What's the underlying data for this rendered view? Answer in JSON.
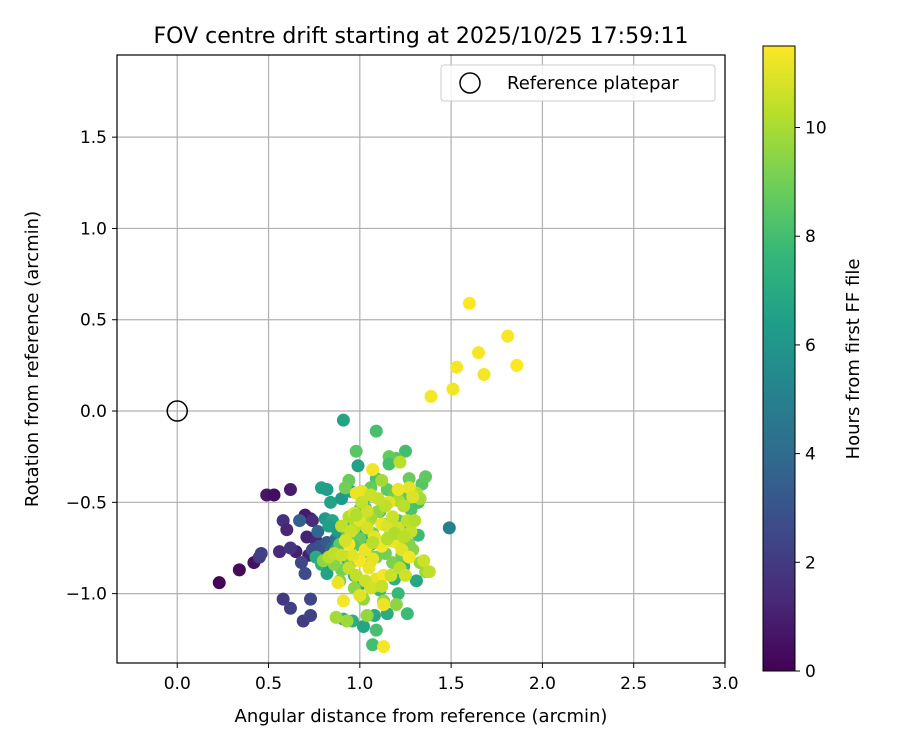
{
  "chart_data": {
    "type": "scatter",
    "title": "FOV centre drift starting at 2025/10/25 17:59:11",
    "xlabel": "Angular distance from reference (arcmin)",
    "ylabel": "Rotation from reference (arcmin)",
    "xlim": [
      -0.33,
      3.0
    ],
    "ylim": [
      -1.38,
      1.95
    ],
    "x_ticks": [
      0.0,
      0.5,
      1.0,
      1.5,
      2.0,
      2.5,
      3.0
    ],
    "x_tick_labels": [
      "0.0",
      "0.5",
      "1.0",
      "1.5",
      "2.0",
      "2.5",
      "3.0"
    ],
    "y_ticks": [
      -1.0,
      -0.5,
      0.0,
      0.5,
      1.0,
      1.5
    ],
    "y_tick_labels": [
      "−1.0",
      "−0.5",
      "0.0",
      "0.5",
      "1.0",
      "1.5"
    ],
    "grid": true,
    "legend": {
      "position": "top-right",
      "label": "Reference platepar",
      "marker": "open-circle"
    },
    "reference_point": {
      "x": 0.0,
      "y": 0.0
    },
    "colorbar": {
      "label": "Hours from first FF file",
      "range": [
        0,
        11.5
      ],
      "ticks": [
        0,
        2,
        4,
        6,
        8,
        10
      ],
      "tick_labels": [
        "0",
        "2",
        "4",
        "6",
        "8",
        "10"
      ],
      "colormap": "viridis",
      "viridis_stops": [
        "#440154",
        "#482878",
        "#3e4989",
        "#31688e",
        "#26828e",
        "#1f9e89",
        "#35b779",
        "#6ece58",
        "#b5de2b",
        "#fde725"
      ]
    },
    "series": [
      {
        "name": "FOV centre drift",
        "points": [
          [
            0.23,
            -0.94,
            0.1
          ],
          [
            0.34,
            -0.87,
            0.3
          ],
          [
            0.42,
            -0.83,
            0.5
          ],
          [
            0.49,
            -0.46,
            0.7
          ],
          [
            0.53,
            -0.46,
            0.4
          ],
          [
            0.62,
            -0.43,
            0.9
          ],
          [
            0.56,
            -0.77,
            1.4
          ],
          [
            0.58,
            -0.6,
            1.6
          ],
          [
            0.6,
            -0.65,
            1.2
          ],
          [
            0.65,
            -0.77,
            1.0
          ],
          [
            0.7,
            -0.57,
            0.8
          ],
          [
            0.71,
            -0.69,
            1.1
          ],
          [
            0.73,
            -0.59,
            0.9
          ],
          [
            0.76,
            -0.71,
            1.3
          ],
          [
            0.72,
            -0.79,
            1.0
          ],
          [
            0.74,
            -0.6,
            1.5
          ],
          [
            0.62,
            -0.75,
            1.8
          ],
          [
            0.58,
            -1.03,
            2.0
          ],
          [
            0.62,
            -1.08,
            2.2
          ],
          [
            0.69,
            -1.15,
            2.1
          ],
          [
            0.73,
            -1.12,
            2.3
          ],
          [
            0.73,
            -1.03,
            2.4
          ],
          [
            0.68,
            -0.83,
            2.5
          ],
          [
            0.7,
            -0.89,
            2.6
          ],
          [
            0.74,
            -0.76,
            2.7
          ],
          [
            0.78,
            -0.74,
            2.8
          ],
          [
            0.8,
            -0.79,
            3.0
          ],
          [
            0.82,
            -0.72,
            3.2
          ],
          [
            0.8,
            -0.84,
            2.9
          ],
          [
            0.45,
            -0.8,
            2.0
          ],
          [
            0.46,
            -0.78,
            2.2
          ],
          [
            0.67,
            -0.6,
            3.5
          ],
          [
            0.77,
            -0.66,
            3.8
          ],
          [
            1.49,
            -0.64,
            5.0
          ],
          [
            0.85,
            -0.75,
            4.0
          ],
          [
            0.87,
            -0.7,
            4.3
          ],
          [
            0.91,
            -0.05,
            6.7
          ],
          [
            0.99,
            -0.3,
            6.6
          ],
          [
            0.79,
            -0.42,
            6.6
          ],
          [
            0.82,
            -0.43,
            6.4
          ],
          [
            0.84,
            -0.5,
            6.6
          ],
          [
            0.9,
            -0.48,
            6.2
          ],
          [
            0.95,
            -0.44,
            6.6
          ],
          [
            0.81,
            -0.59,
            6.1
          ],
          [
            0.85,
            -0.6,
            6.8
          ],
          [
            0.83,
            -0.63,
            6.5
          ],
          [
            0.88,
            -0.66,
            6.3
          ],
          [
            0.93,
            -0.63,
            6.7
          ],
          [
            0.87,
            -0.76,
            6.4
          ],
          [
            0.92,
            -0.8,
            6.9
          ],
          [
            0.96,
            -0.57,
            7.0
          ],
          [
            1.0,
            -0.65,
            6.6
          ],
          [
            1.03,
            -0.71,
            6.8
          ],
          [
            1.06,
            -0.73,
            7.1
          ],
          [
            0.79,
            -0.84,
            7.4
          ],
          [
            0.76,
            -0.8,
            7.0
          ],
          [
            0.82,
            -0.89,
            6.6
          ],
          [
            0.93,
            -0.86,
            7.2
          ],
          [
            0.97,
            -0.9,
            7.3
          ],
          [
            1.0,
            -0.95,
            7.2
          ],
          [
            1.05,
            -0.84,
            7.4
          ],
          [
            0.91,
            -1.14,
            7.4
          ],
          [
            0.96,
            -1.15,
            7.2
          ],
          [
            1.02,
            -1.18,
            6.8
          ],
          [
            1.08,
            -1.12,
            7.0
          ],
          [
            1.15,
            -1.11,
            7.1
          ],
          [
            1.19,
            -0.92,
            7.3
          ],
          [
            1.24,
            -0.85,
            7.5
          ],
          [
            1.31,
            -0.93,
            6.8
          ],
          [
            1.26,
            -1.11,
            7.8
          ],
          [
            1.21,
            -1.0,
            7.7
          ],
          [
            1.11,
            -0.98,
            7.5
          ],
          [
            1.07,
            -1.28,
            8.0
          ],
          [
            1.09,
            -1.2,
            8.1
          ],
          [
            1.32,
            -0.68,
            7.8
          ],
          [
            1.24,
            -0.61,
            7.9
          ],
          [
            1.28,
            -0.54,
            8.2
          ],
          [
            1.26,
            -0.47,
            8.6
          ],
          [
            1.32,
            -0.5,
            8.1
          ],
          [
            1.34,
            -0.4,
            8.4
          ],
          [
            1.36,
            -0.36,
            8.6
          ],
          [
            1.27,
            -0.37,
            8.8
          ],
          [
            1.25,
            -0.22,
            8.0
          ],
          [
            1.2,
            -0.26,
            8.4
          ],
          [
            1.16,
            -0.25,
            8.7
          ],
          [
            1.16,
            -0.29,
            8.1
          ],
          [
            1.09,
            -0.37,
            8.3
          ],
          [
            1.06,
            -0.42,
            8.7
          ],
          [
            1.03,
            -0.47,
            7.9
          ],
          [
            1.09,
            -0.11,
            8.1
          ],
          [
            0.98,
            -0.22,
            8.5
          ],
          [
            0.94,
            -0.38,
            8.8
          ],
          [
            0.92,
            -0.42,
            9.0
          ],
          [
            1.0,
            -0.54,
            8.0
          ],
          [
            1.03,
            -0.53,
            8.4
          ],
          [
            1.11,
            -0.55,
            8.2
          ],
          [
            1.15,
            -0.43,
            8.6
          ],
          [
            1.19,
            -0.46,
            8.9
          ],
          [
            1.21,
            -0.6,
            8.3
          ],
          [
            1.17,
            -0.67,
            8.5
          ],
          [
            1.13,
            -0.62,
            8.7
          ],
          [
            1.07,
            -0.67,
            8.9
          ],
          [
            1.0,
            -0.7,
            8.8
          ],
          [
            0.97,
            -0.74,
            8.5
          ],
          [
            0.93,
            -0.69,
            8.7
          ],
          [
            0.89,
            -0.73,
            8.6
          ],
          [
            0.9,
            -0.87,
            9.0
          ],
          [
            0.95,
            -0.83,
            8.8
          ],
          [
            1.04,
            -0.77,
            9.0
          ],
          [
            1.09,
            -0.8,
            9.1
          ],
          [
            1.14,
            -0.78,
            9.0
          ],
          [
            1.18,
            -0.83,
            9.2
          ],
          [
            1.23,
            -0.79,
            8.9
          ],
          [
            1.27,
            -0.73,
            9.3
          ],
          [
            1.29,
            -0.76,
            9.4
          ],
          [
            1.33,
            -0.83,
            9.6
          ],
          [
            1.36,
            -0.88,
            9.8
          ],
          [
            0.8,
            -0.82,
            9.5
          ],
          [
            0.86,
            -0.84,
            9.4
          ],
          [
            0.89,
            -0.93,
            9.3
          ],
          [
            0.97,
            -0.97,
            9.5
          ],
          [
            1.02,
            -1.03,
            9.6
          ],
          [
            1.08,
            -0.96,
            9.8
          ],
          [
            1.13,
            -1.04,
            9.7
          ],
          [
            1.2,
            -1.06,
            9.5
          ],
          [
            0.87,
            -1.13,
            9.9
          ],
          [
            0.93,
            -1.15,
            9.8
          ],
          [
            1.04,
            -1.12,
            9.6
          ],
          [
            1.12,
            -0.38,
            9.9
          ],
          [
            1.1,
            -0.55,
            9.6
          ],
          [
            1.06,
            -0.59,
            9.9
          ],
          [
            1.02,
            -0.6,
            10.1
          ],
          [
            0.97,
            -0.64,
            10.3
          ],
          [
            0.94,
            -0.58,
            10.2
          ],
          [
            0.9,
            -0.63,
            10.4
          ],
          [
            1.21,
            -0.49,
            10.0
          ],
          [
            1.24,
            -0.52,
            10.3
          ],
          [
            1.25,
            -0.68,
            10.1
          ],
          [
            1.31,
            -0.45,
            10.2
          ],
          [
            1.33,
            -0.48,
            9.9
          ],
          [
            1.22,
            -0.28,
            10.3
          ],
          [
            0.97,
            -0.56,
            10.9
          ],
          [
            1.0,
            -0.6,
            11.0
          ],
          [
            1.04,
            -0.64,
            10.8
          ],
          [
            1.08,
            -0.69,
            11.1
          ],
          [
            1.12,
            -0.62,
            11.2
          ],
          [
            1.15,
            -0.63,
            10.9
          ],
          [
            1.17,
            -0.71,
            11.0
          ],
          [
            1.12,
            -0.74,
            11.3
          ],
          [
            1.07,
            -0.81,
            11.1
          ],
          [
            1.03,
            -0.76,
            11.2
          ],
          [
            1.0,
            -0.82,
            11.4
          ],
          [
            0.96,
            -0.79,
            11.0
          ],
          [
            0.94,
            -0.73,
            11.3
          ],
          [
            1.2,
            -0.72,
            11.2
          ],
          [
            1.23,
            -0.76,
            11.0
          ],
          [
            1.27,
            -0.8,
            11.3
          ],
          [
            1.09,
            -0.92,
            11.1
          ],
          [
            1.05,
            -0.86,
            11.2
          ],
          [
            1.13,
            -0.9,
            11.4
          ],
          [
            1.13,
            -1.06,
            11.2
          ],
          [
            1.0,
            -1.01,
            11.0
          ],
          [
            0.91,
            -1.04,
            11.3
          ],
          [
            0.88,
            -0.94,
            11.2
          ],
          [
            1.13,
            -1.29,
            11.4
          ],
          [
            1.27,
            -0.42,
            11.1
          ],
          [
            1.29,
            -0.47,
            10.9
          ],
          [
            1.21,
            -0.43,
            11.2
          ],
          [
            1.16,
            -0.5,
            11.0
          ],
          [
            1.07,
            -0.32,
            11.3
          ],
          [
            1.01,
            -0.44,
            11.1
          ],
          [
            0.98,
            -0.45,
            11.2
          ],
          [
            1.39,
            0.08,
            11.4
          ],
          [
            1.51,
            0.12,
            11.3
          ],
          [
            1.53,
            0.24,
            11.4
          ],
          [
            1.6,
            0.59,
            11.5
          ],
          [
            1.65,
            0.32,
            11.4
          ],
          [
            1.68,
            0.2,
            11.3
          ],
          [
            1.81,
            0.41,
            11.4
          ],
          [
            1.86,
            0.25,
            11.5
          ],
          [
            1.38,
            -0.88,
            10.4
          ],
          [
            1.35,
            -0.82,
            10.6
          ],
          [
            1.28,
            -0.66,
            10.5
          ],
          [
            1.21,
            -0.64,
            10.7
          ],
          [
            1.18,
            -0.58,
            10.6
          ],
          [
            1.14,
            -0.52,
            10.4
          ],
          [
            1.1,
            -0.48,
            10.5
          ],
          [
            1.06,
            -0.46,
            10.6
          ],
          [
            1.04,
            -0.55,
            10.7
          ],
          [
            1.01,
            -0.5,
            10.5
          ],
          [
            0.98,
            -0.57,
            10.2
          ],
          [
            0.95,
            -0.66,
            10.6
          ],
          [
            0.92,
            -0.71,
            10.8
          ],
          [
            0.94,
            -0.86,
            10.5
          ],
          [
            0.98,
            -0.9,
            10.4
          ],
          [
            1.03,
            -0.93,
            10.6
          ],
          [
            1.06,
            -0.97,
            10.7
          ],
          [
            1.12,
            -0.96,
            10.5
          ],
          [
            1.17,
            -0.9,
            10.6
          ],
          [
            1.22,
            -0.86,
            10.4
          ],
          [
            1.25,
            -0.9,
            10.7
          ],
          [
            0.83,
            -0.8,
            10.2
          ],
          [
            0.86,
            -0.78,
            10.4
          ],
          [
            0.9,
            -0.79,
            10.6
          ],
          [
            1.15,
            -0.7,
            10.2
          ],
          [
            1.19,
            -0.67,
            10.1
          ],
          [
            1.24,
            -0.69,
            10.3
          ],
          [
            1.26,
            -0.6,
            10.4
          ],
          [
            1.3,
            -0.6,
            10.2
          ],
          [
            1.07,
            -0.72,
            10.3
          ]
        ]
      }
    ]
  }
}
